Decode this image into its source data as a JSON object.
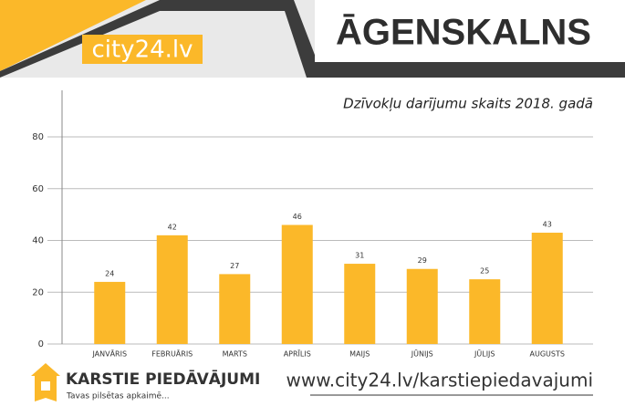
{
  "header": {
    "brand": "city24.lv",
    "title": "ĀGENSKALNS"
  },
  "chart_data": {
    "type": "bar",
    "title": "Dzīvokļu darījumu skaits 2018. gadā",
    "categories": [
      "JANVĀRIS",
      "FEBRUĀRIS",
      "MARTS",
      "APRĪLIS",
      "MAIJS",
      "JŪNIJS",
      "JŪLIJS",
      "AUGUSTS"
    ],
    "values": [
      24,
      42,
      27,
      46,
      31,
      29,
      25,
      43
    ],
    "color": "#fbb829",
    "ylim": [
      0,
      98
    ],
    "yticks": [
      0,
      20,
      40,
      60,
      80
    ],
    "grid": true
  },
  "footer": {
    "logo_title": "KARSTIE PIEDĀVĀJUMI",
    "logo_tagline": "Tavas pilsētas apkaimē...",
    "url": "www.city24.lv/karstiepiedavajumi"
  }
}
